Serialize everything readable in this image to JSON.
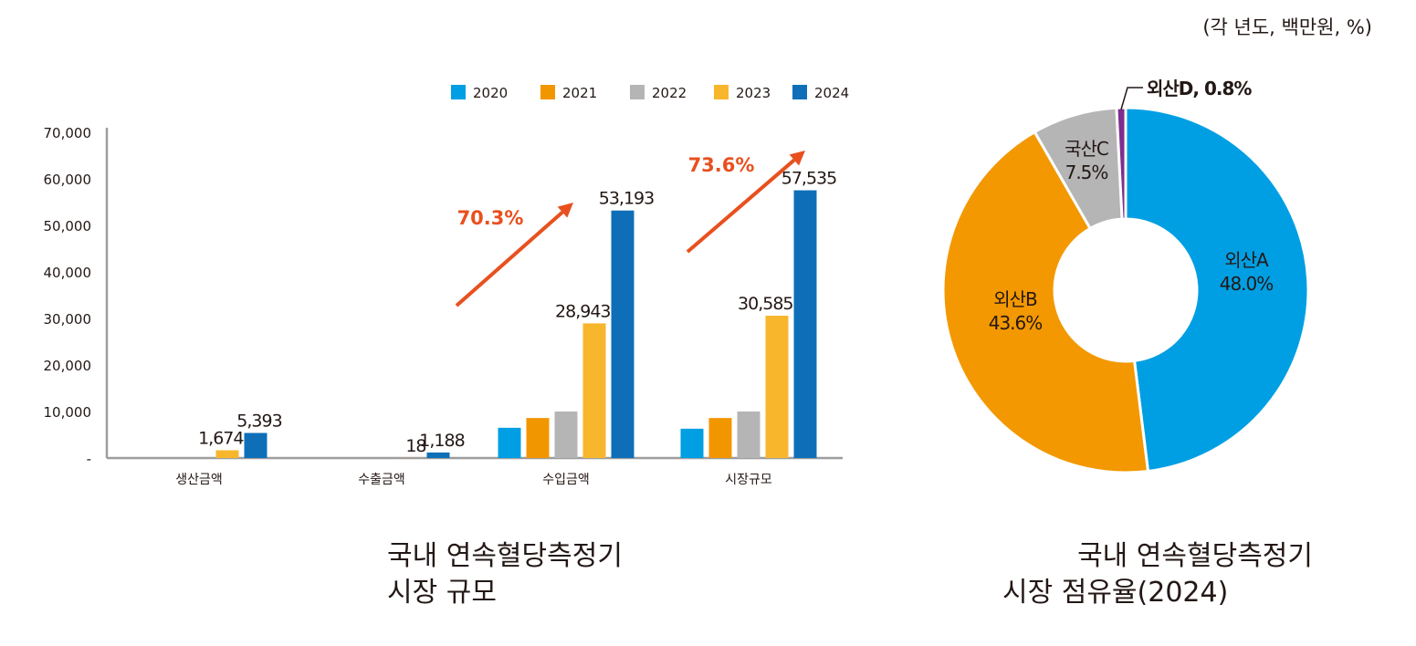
{
  "unit_note": "(각 년도, 백만원, %)",
  "chart_data": [
    {
      "type": "bar",
      "title": "국내 연속혈당측정기 시장 규모",
      "title_lines": [
        "국내 연속혈당측정기",
        "시장 규모"
      ],
      "categories": [
        "생산금액",
        "수출금액",
        "수입금액",
        "시장규모"
      ],
      "ylim": [
        0,
        70000
      ],
      "yticks": [
        {
          "value": 0,
          "label": "-"
        },
        {
          "value": 10000,
          "label": "10,000"
        },
        {
          "value": 20000,
          "label": "20,000"
        },
        {
          "value": 30000,
          "label": "30,000"
        },
        {
          "value": 40000,
          "label": "40,000"
        },
        {
          "value": 50000,
          "label": "50,000"
        },
        {
          "value": 60000,
          "label": "60,000"
        },
        {
          "value": 70000,
          "label": "70,000"
        }
      ],
      "grid": false,
      "legend_position": "top-right",
      "series": [
        {
          "name": "2020",
          "color": "#009fe3",
          "values": [
            0,
            0,
            6500,
            6300
          ],
          "labels": [
            "",
            "",
            "",
            ""
          ]
        },
        {
          "name": "2021",
          "color": "#f29600",
          "values": [
            0,
            0,
            8600,
            8600
          ],
          "labels": [
            "",
            "",
            "",
            ""
          ]
        },
        {
          "name": "2022",
          "color": "#b5b5b5",
          "values": [
            0,
            0,
            10000,
            10000
          ],
          "labels": [
            "",
            "",
            "",
            ""
          ]
        },
        {
          "name": "2023",
          "color": "#f8b62d",
          "values": [
            1674,
            18,
            28943,
            30585
          ],
          "labels": [
            "1,674",
            "18",
            "28,943",
            "30,585"
          ]
        },
        {
          "name": "2024",
          "color": "#0e6fb8",
          "values": [
            5393,
            1188,
            53193,
            57535
          ],
          "labels": [
            "5,393",
            "1,188",
            "53,193",
            "57,535"
          ]
        }
      ],
      "annotations": [
        {
          "text": "70.3%",
          "category": "수입금액",
          "color": "#e8501e"
        },
        {
          "text": "73.6%",
          "category": "시장규모",
          "color": "#e8501e"
        }
      ]
    },
    {
      "type": "pie",
      "donut": true,
      "title": "국내 연속혈당측정기 시장 점유율(2024)",
      "title_lines": [
        "국내 연속혈당측정기",
        "시장 점유율(2024)"
      ],
      "slices": [
        {
          "label": "외산A",
          "value": 48.0,
          "text": "48.0%",
          "color": "#009fe3"
        },
        {
          "label": "외산B",
          "value": 43.6,
          "text": "43.6%",
          "color": "#f39800"
        },
        {
          "label": "국산C",
          "value": 7.5,
          "text": "7.5%",
          "color": "#b5b5b5"
        },
        {
          "label": "외산D",
          "value": 0.8,
          "text": "0.8%",
          "color": "#7d2e8e"
        }
      ]
    }
  ]
}
